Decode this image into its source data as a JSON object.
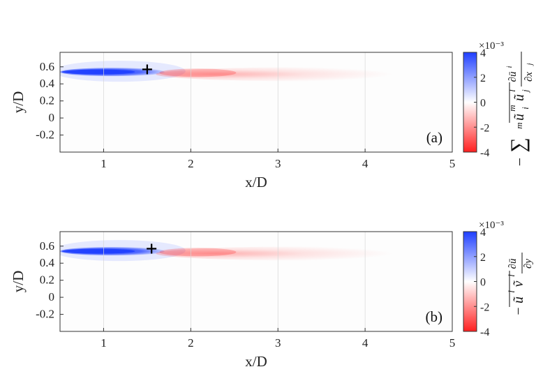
{
  "chart_data": [
    {
      "type": "heatmap",
      "panel_label": "(a)",
      "xlabel": "x/D",
      "ylabel": "y/D",
      "xlim": [
        0.5,
        5
      ],
      "ylim": [
        -0.4,
        0.77
      ],
      "xticks": [
        1,
        2,
        3,
        4,
        5
      ],
      "yticks": [
        0.6,
        0.4,
        0.2,
        0,
        -0.2
      ],
      "grid": true,
      "colorbar": {
        "label": "-∑_m ũ_i^m ũ_j^l ∂ū_i/∂x_j",
        "range": [
          -4,
          4
        ],
        "ticks": [
          4,
          2,
          0,
          -2,
          -4
        ],
        "exponent": "×10⁻³",
        "colors": {
          "high": "#1f3fff",
          "mid": "#ffffff",
          "low": "#ff1f1f"
        }
      },
      "marker": {
        "symbol": "+",
        "x": 1.5,
        "y": 0.57
      },
      "features": [
        {
          "sign": "positive",
          "x_range": [
            0.5,
            1.7
          ],
          "y_center": 0.54,
          "peak": 4
        },
        {
          "sign": "negative",
          "x_range": [
            1.6,
            5
          ],
          "y_center": 0.53,
          "peak": -1.2
        }
      ]
    },
    {
      "type": "heatmap",
      "panel_label": "(b)",
      "xlabel": "x/D",
      "ylabel": "y/D",
      "xlim": [
        0.5,
        5
      ],
      "ylim": [
        -0.4,
        0.77
      ],
      "xticks": [
        1,
        2,
        3,
        4,
        5
      ],
      "yticks": [
        0.6,
        0.4,
        0.2,
        0,
        -0.2
      ],
      "grid": true,
      "colorbar": {
        "label": "-ũ^l ṽ^l ∂ū/∂y",
        "range": [
          -4,
          4
        ],
        "ticks": [
          4,
          2,
          0,
          -2,
          -4
        ],
        "exponent": "×10⁻³",
        "colors": {
          "high": "#1f3fff",
          "mid": "#ffffff",
          "low": "#ff1f1f"
        }
      },
      "marker": {
        "symbol": "+",
        "x": 1.55,
        "y": 0.57
      },
      "features": [
        {
          "sign": "positive",
          "x_range": [
            0.5,
            1.7
          ],
          "y_center": 0.54,
          "peak": 4
        },
        {
          "sign": "negative",
          "x_range": [
            1.6,
            5
          ],
          "y_center": 0.53,
          "peak": -1.3
        }
      ]
    }
  ]
}
